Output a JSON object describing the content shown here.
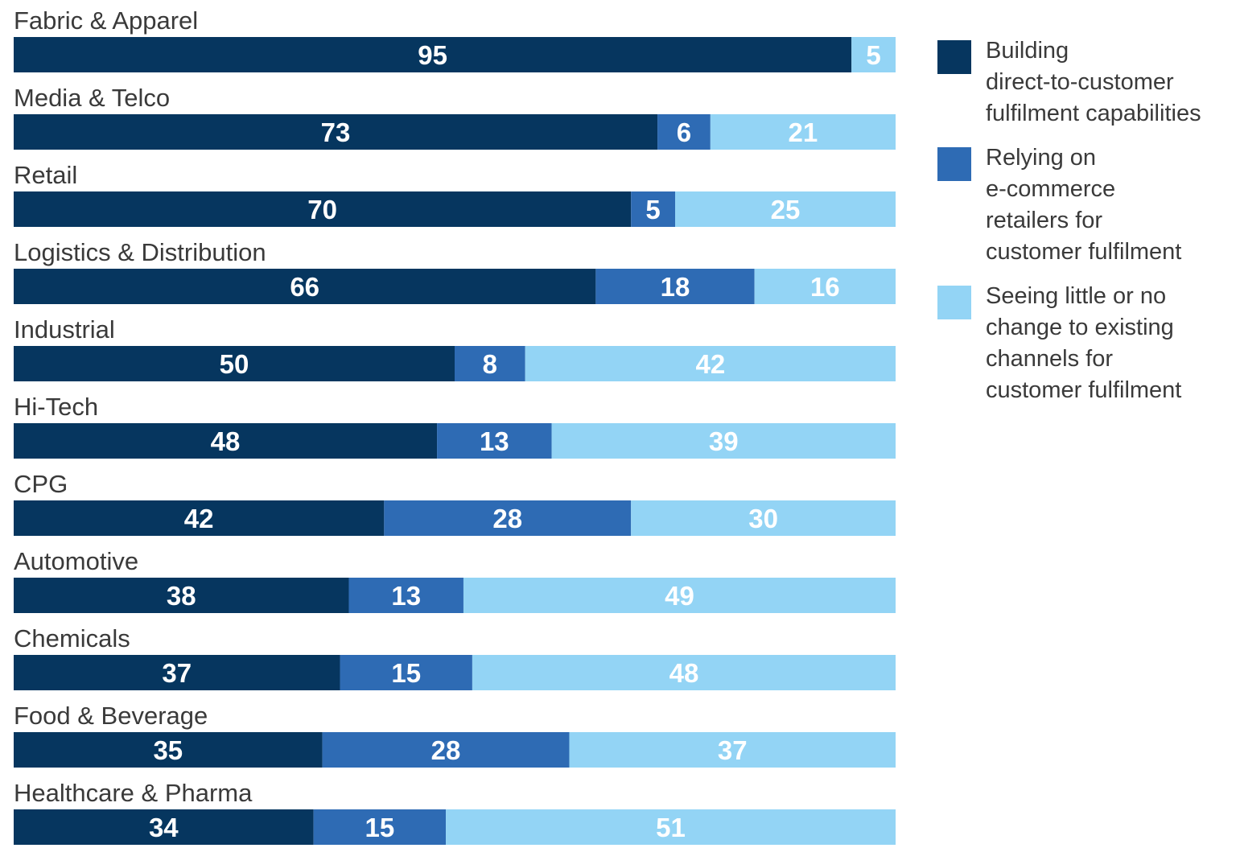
{
  "chart_data": {
    "type": "bar",
    "orientation": "horizontal",
    "stacked": true,
    "categories": [
      "Fabric & Apparel",
      "Media & Telco",
      "Retail",
      "Logistics & Distribution",
      "Industrial",
      "Hi-Tech",
      "CPG",
      "Automotive",
      "Chemicals",
      "Food & Beverage",
      "Healthcare & Pharma"
    ],
    "series": [
      {
        "name": "Building\ndirect-to-customer\nfulfilment capabilities",
        "color": "#06365f",
        "values": [
          95,
          73,
          70,
          66,
          50,
          48,
          42,
          38,
          37,
          35,
          34
        ]
      },
      {
        "name": "Relying on\ne-commerce\nretailers for\ncustomer fulfilment",
        "color": "#2e6bb4",
        "values": [
          0,
          6,
          5,
          18,
          8,
          13,
          28,
          13,
          15,
          28,
          15
        ]
      },
      {
        "name": "Seeing little or no\nchange to existing\nchannels for\ncustomer fulfilment",
        "color": "#93d4f5",
        "values": [
          5,
          21,
          25,
          16,
          42,
          39,
          30,
          49,
          48,
          37,
          51
        ]
      }
    ],
    "xlim": [
      0,
      100
    ],
    "data_labels": true,
    "grid": false,
    "legend_position": "right"
  }
}
